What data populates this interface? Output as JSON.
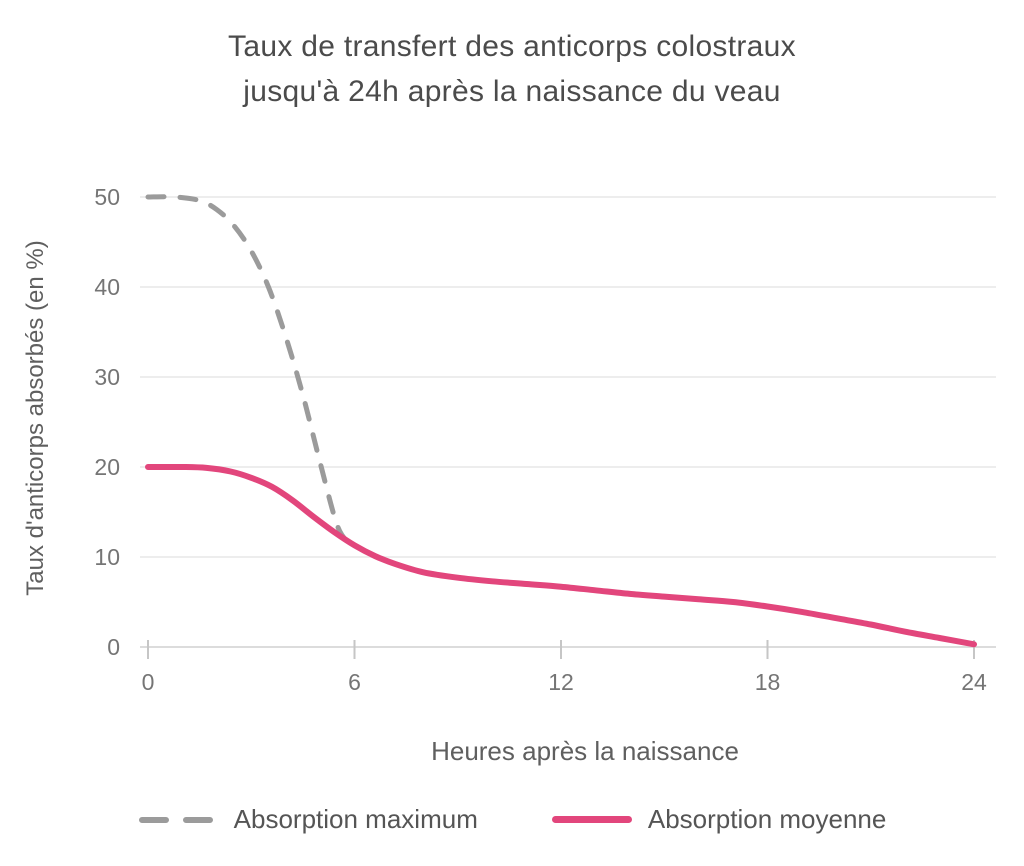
{
  "title_lines": [
    "Taux de transfert des anticorps colostraux",
    "jusqu'à 24h après la naissance du veau"
  ],
  "chart_data": {
    "type": "line",
    "title": "Taux de transfert des anticorps colostraux jusqu'à 24h après la naissance du veau",
    "xlabel": "Heures après la naissance",
    "ylabel": "Taux d'anticorps absorbés (en %)",
    "xlim": [
      0,
      24
    ],
    "ylim": [
      0,
      50
    ],
    "xticks": [
      0,
      6,
      12,
      18,
      24
    ],
    "yticks": [
      0,
      10,
      20,
      30,
      40,
      50
    ],
    "grid": true,
    "legend_position": "bottom",
    "series": [
      {
        "name": "Absorption maximum",
        "style": "dashed",
        "color": "#9b9b9b",
        "stroke_width": 5,
        "points": [
          [
            0,
            50
          ],
          [
            0.8,
            50
          ],
          [
            1.5,
            49.6
          ],
          [
            2,
            48.6
          ],
          [
            2.5,
            46.8
          ],
          [
            3,
            44
          ],
          [
            3.5,
            40
          ],
          [
            4,
            34.5
          ],
          [
            4.5,
            28
          ],
          [
            5,
            20.5
          ],
          [
            5.5,
            13.5
          ],
          [
            5.85,
            11.5
          ]
        ]
      },
      {
        "name": "Absorption moyenne",
        "style": "solid",
        "color": "#e2467c",
        "stroke_width": 6,
        "points": [
          [
            0,
            20
          ],
          [
            1,
            20
          ],
          [
            1.7,
            19.9
          ],
          [
            2.4,
            19.5
          ],
          [
            3,
            18.8
          ],
          [
            3.6,
            17.8
          ],
          [
            4.2,
            16.3
          ],
          [
            4.8,
            14.5
          ],
          [
            5.4,
            12.8
          ],
          [
            6,
            11.3
          ],
          [
            6.6,
            10.1
          ],
          [
            7.2,
            9.2
          ],
          [
            8,
            8.3
          ],
          [
            9,
            7.7
          ],
          [
            10,
            7.3
          ],
          [
            11,
            7
          ],
          [
            12,
            6.7
          ],
          [
            13,
            6.3
          ],
          [
            14,
            5.9
          ],
          [
            15,
            5.6
          ],
          [
            16,
            5.3
          ],
          [
            17,
            5
          ],
          [
            18,
            4.5
          ],
          [
            19,
            3.9
          ],
          [
            20,
            3.2
          ],
          [
            21,
            2.5
          ],
          [
            22,
            1.7
          ],
          [
            23,
            1
          ],
          [
            24,
            0.3
          ]
        ]
      }
    ]
  },
  "colors": {
    "background": "#ffffff",
    "grid": "#ededed",
    "axis_line": "#dcdcdc",
    "tick_mark": "#c6c6c6",
    "title_text": "#4b4b4b",
    "axis_text": "#5f5f5f",
    "tick_text": "#757575",
    "legend_text": "#555555",
    "series_maximum": "#9b9b9b",
    "series_moyenne": "#e2467c"
  }
}
